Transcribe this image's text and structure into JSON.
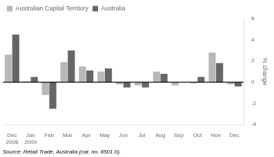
{
  "chart_data": {
    "type": "bar",
    "categories": [
      "Dec\n2008",
      "Jan\n2009",
      "Feb",
      "Mar",
      "Apr",
      "May",
      "Jun",
      "Jul",
      "Aug",
      "Sep",
      "Oct",
      "Nov",
      "Dec"
    ],
    "series": [
      {
        "name": "Australian Capital Territory",
        "color": "#b8b8b8",
        "values": [
          2.6,
          0.1,
          -1.2,
          1.9,
          1.5,
          1.0,
          -0.2,
          -0.3,
          1.0,
          -0.3,
          -0.1,
          2.8,
          -0.2
        ]
      },
      {
        "name": "Australia",
        "color": "#666666",
        "values": [
          4.5,
          0.5,
          -2.5,
          3.0,
          1.1,
          1.3,
          -0.5,
          -0.5,
          0.8,
          0.0,
          0.5,
          1.8,
          -0.4
        ]
      }
    ],
    "y_label": "% change",
    "annotations": [
      "Source: Retail Trade, Australia (cat. no. 8501.0)."
    ],
    "ylim": [
      -4,
      6
    ],
    "yticks": [
      -4,
      -2,
      0,
      2,
      4,
      6
    ],
    "grid": false,
    "legend": "upper left"
  }
}
